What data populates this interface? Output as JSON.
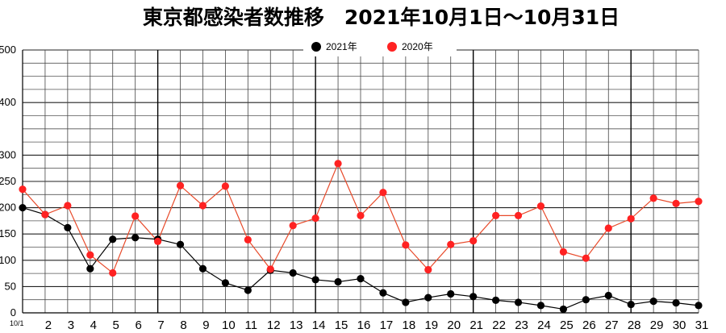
{
  "title": "東京都感染者数推移　2021年10月1日～10月31日",
  "chart_data": {
    "type": "line",
    "categories": [
      "10/1",
      "2",
      "3",
      "4",
      "5",
      "6",
      "7",
      "8",
      "9",
      "10",
      "11",
      "12",
      "13",
      "14",
      "15",
      "16",
      "17",
      "18",
      "19",
      "20",
      "21",
      "22",
      "23",
      "24",
      "25",
      "26",
      "27",
      "28",
      "29",
      "30",
      "31"
    ],
    "series": [
      {
        "name": "2021年",
        "color": "#000000",
        "values": [
          200,
          187,
          162,
          84,
          140,
          143,
          140,
          130,
          84,
          57,
          43,
          81,
          76,
          63,
          59,
          65,
          38,
          20,
          29,
          36,
          31,
          24,
          20,
          14,
          7,
          25,
          33,
          16,
          22,
          19,
          14
        ]
      },
      {
        "name": "2020年",
        "color": "#ff2222",
        "values": [
          235,
          187,
          204,
          110,
          76,
          184,
          136,
          242,
          204,
          241,
          139,
          83,
          166,
          180,
          284,
          185,
          229,
          129,
          82,
          130,
          137,
          185,
          185,
          203,
          116,
          104,
          161,
          179,
          218,
          208,
          212
        ]
      }
    ],
    "y_ticks": [
      0,
      50,
      100,
      150,
      200,
      250,
      300,
      400,
      500
    ],
    "ylim": [
      0,
      500
    ],
    "grid": true,
    "legend_position": "top-center",
    "line_color_2020": "#e84a2a"
  }
}
